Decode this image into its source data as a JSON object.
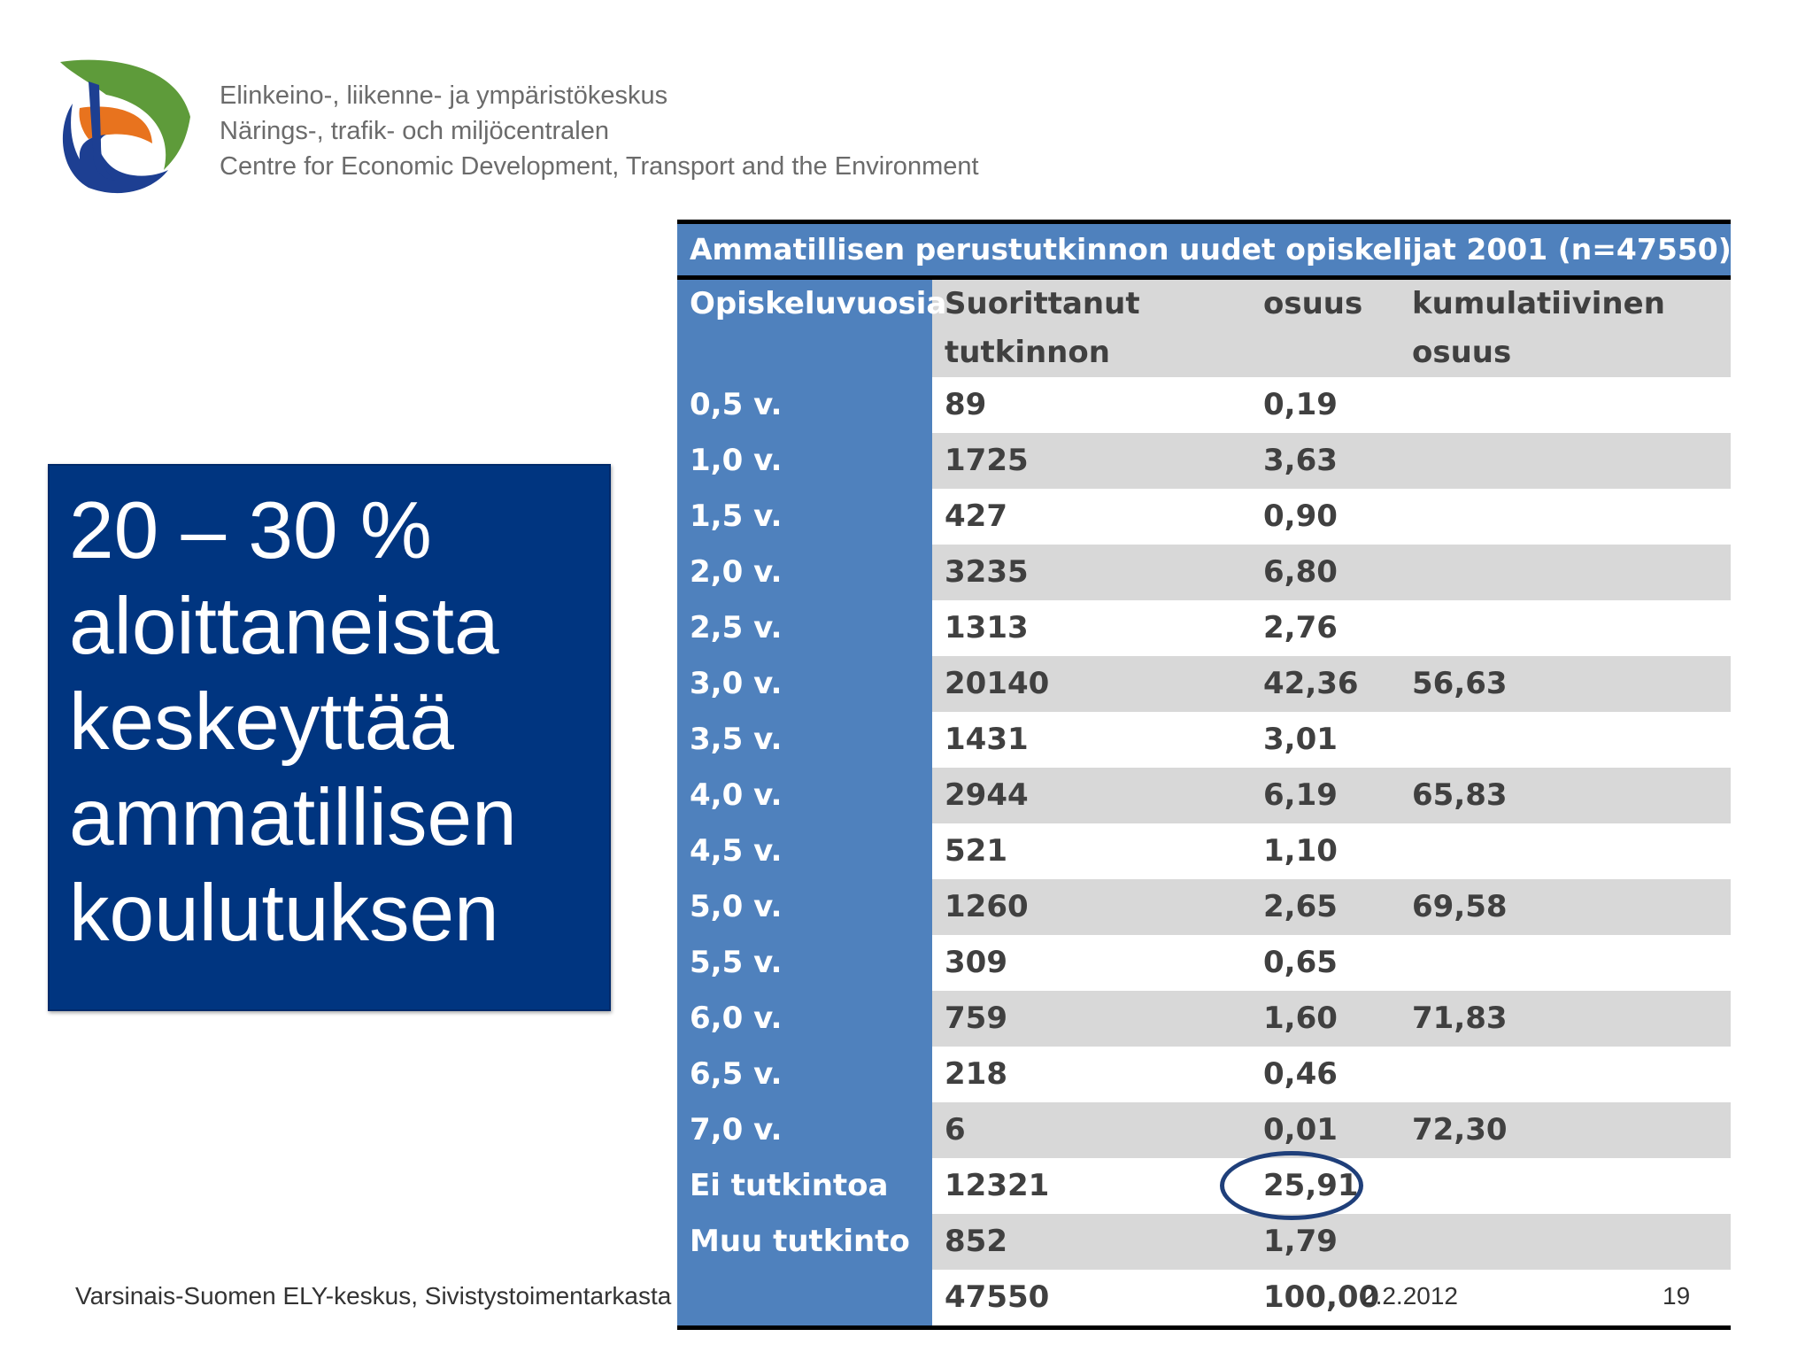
{
  "organization": {
    "line1": "Elinkeino-, liikenne- ja ympäristökeskus",
    "line2": "Närings-, trafik- och miljöcentralen",
    "line3": "Centre for Economic Development, Transport and the Environment"
  },
  "callout": {
    "line1": "20 – 30 %",
    "line2": "aloittaneista",
    "line3": "keskeyttää",
    "line4": "ammatillisen",
    "line5": "koulutuksen"
  },
  "table": {
    "title": "Ammatillisen perustutkinnon uudet opiskelijat 2001 (n=47550)",
    "headers": {
      "col1": "Opiskeluvuosia",
      "col2a": "Suorittanut",
      "col2b": "tutkinnon",
      "col3": "osuus",
      "col4a": "kumulatiivinen",
      "col4b": "osuus"
    },
    "rows": [
      {
        "years": "0,5 v.",
        "completed": "89",
        "share": "0,19",
        "cumulative": ""
      },
      {
        "years": "1,0 v.",
        "completed": "1725",
        "share": "3,63",
        "cumulative": ""
      },
      {
        "years": "1,5 v.",
        "completed": "427",
        "share": "0,90",
        "cumulative": ""
      },
      {
        "years": "2,0 v.",
        "completed": "3235",
        "share": "6,80",
        "cumulative": ""
      },
      {
        "years": "2,5 v.",
        "completed": "1313",
        "share": "2,76",
        "cumulative": ""
      },
      {
        "years": "3,0 v.",
        "completed": "20140",
        "share": "42,36",
        "cumulative": "56,63"
      },
      {
        "years": "3,5 v.",
        "completed": "1431",
        "share": "3,01",
        "cumulative": ""
      },
      {
        "years": "4,0 v.",
        "completed": "2944",
        "share": "6,19",
        "cumulative": "65,83"
      },
      {
        "years": "4,5 v.",
        "completed": "521",
        "share": "1,10",
        "cumulative": ""
      },
      {
        "years": "5,0 v.",
        "completed": "1260",
        "share": "2,65",
        "cumulative": "69,58"
      },
      {
        "years": "5,5 v.",
        "completed": "309",
        "share": "0,65",
        "cumulative": ""
      },
      {
        "years": "6,0 v.",
        "completed": "759",
        "share": "1,60",
        "cumulative": "71,83"
      },
      {
        "years": "6,5 v.",
        "completed": "218",
        "share": "0,46",
        "cumulative": ""
      },
      {
        "years": "7,0 v.",
        "completed": "6",
        "share": "0,01",
        "cumulative": "72,30"
      },
      {
        "years": "Ei tutkintoa",
        "completed": "12321",
        "share": "25,91",
        "cumulative": ""
      },
      {
        "years": "Muu tutkinto",
        "completed": "852",
        "share": "1,79",
        "cumulative": ""
      },
      {
        "years": "",
        "completed": "47550",
        "share": "100,00",
        "cumulative": ""
      }
    ]
  },
  "footer": {
    "source": "Varsinais-Suomen ELY-keskus, Sivistystoimentarkasta",
    "date": "2.2.2012",
    "page": "19"
  }
}
